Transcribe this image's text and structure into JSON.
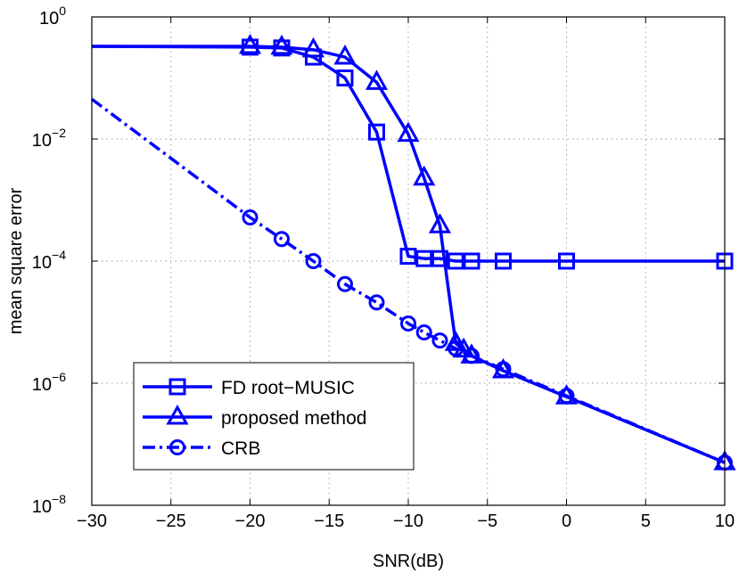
{
  "chart_data": {
    "type": "line",
    "xlabel": "SNR(dB)",
    "ylabel": "mean square error",
    "xlim": [
      -30,
      10
    ],
    "ylim": [
      1e-08,
      1
    ],
    "yscale": "log",
    "grid": true,
    "legend_position": "bottom-left",
    "x_ticks": [
      -30,
      -25,
      -20,
      -15,
      -10,
      -5,
      0,
      5,
      10
    ],
    "x_tick_labels": [
      "−30",
      "−25",
      "−20",
      "−15",
      "−10",
      "−5",
      "0",
      "5",
      "10"
    ],
    "y_ticks": [
      {
        "value": 1e-08,
        "base": "10",
        "exp": "−8"
      },
      {
        "value": 1e-06,
        "base": "10",
        "exp": "−6"
      },
      {
        "value": 0.0001,
        "base": "10",
        "exp": "−4"
      },
      {
        "value": 0.01,
        "base": "10",
        "exp": "−2"
      },
      {
        "value": 1,
        "base": "10",
        "exp": "0"
      }
    ],
    "series": [
      {
        "name": "FD root−MUSIC",
        "color": "#0000ff",
        "marker": "square",
        "line_style": "solid",
        "line_x": [
          -30,
          -20,
          -18,
          -16,
          -14,
          -12,
          -10,
          -9,
          -8,
          -7,
          -6,
          -4,
          0,
          10
        ],
        "line_y": [
          0.33,
          0.32,
          0.31,
          0.22,
          0.1,
          0.013,
          0.00012,
          0.00011,
          0.00011,
          0.0001,
          0.0001,
          0.0001,
          0.0001,
          0.0001
        ],
        "marker_x": [
          -20,
          -18,
          -16,
          -14,
          -12,
          -10,
          -9,
          -8,
          -7,
          -6,
          -4,
          0,
          10
        ],
        "marker_y": [
          0.32,
          0.31,
          0.22,
          0.1,
          0.013,
          0.00012,
          0.00011,
          0.00011,
          0.0001,
          0.0001,
          0.0001,
          0.0001,
          0.0001
        ]
      },
      {
        "name": "proposed method",
        "color": "#0000ff",
        "marker": "triangle",
        "line_style": "solid",
        "line_x": [
          -30,
          -20,
          -18,
          -16,
          -14,
          -12,
          -10,
          -9,
          -8,
          -7.5,
          -7,
          -6.5,
          -6,
          -4,
          0,
          10
        ],
        "line_y": [
          0.33,
          0.33,
          0.32,
          0.29,
          0.22,
          0.085,
          0.012,
          0.0023,
          0.00038,
          4e-05,
          4.5e-06,
          3.5e-06,
          2.8e-06,
          1.6e-06,
          6e-07,
          5e-08
        ],
        "marker_x": [
          -20,
          -18,
          -16,
          -14,
          -12,
          -10,
          -9,
          -8,
          -7,
          -6.5,
          -6,
          -4,
          0,
          10
        ],
        "marker_y": [
          0.33,
          0.32,
          0.29,
          0.22,
          0.085,
          0.012,
          0.0023,
          0.00038,
          4.5e-06,
          3.5e-06,
          2.8e-06,
          1.6e-06,
          6e-07,
          5e-08
        ]
      },
      {
        "name": "CRB",
        "color": "#0000ff",
        "marker": "circle",
        "line_style": "dashdot",
        "line_x": [
          -30,
          -20,
          -18,
          -16,
          -14,
          -12,
          -10,
          -9,
          -8,
          -7,
          -6,
          -4,
          0,
          10
        ],
        "line_y": [
          0.045,
          0.00052,
          0.00023,
          0.0001,
          4.2e-05,
          2.1e-05,
          9.5e-06,
          6.8e-06,
          5e-06,
          3.7e-06,
          2.8e-06,
          1.7e-06,
          6.2e-07,
          5e-08
        ],
        "marker_x": [
          -20,
          -18,
          -16,
          -14,
          -12,
          -10,
          -9,
          -8,
          -7,
          -6,
          -4,
          0,
          10
        ],
        "marker_y": [
          0.00052,
          0.00023,
          0.0001,
          4.2e-05,
          2.1e-05,
          9.5e-06,
          6.8e-06,
          5e-06,
          3.7e-06,
          2.8e-06,
          1.7e-06,
          6.2e-07,
          5e-08
        ]
      }
    ]
  }
}
